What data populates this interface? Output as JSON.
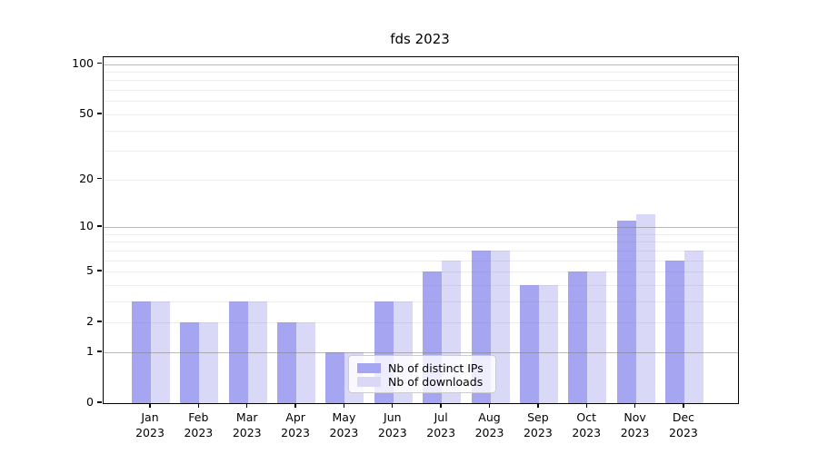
{
  "chart_data": {
    "type": "bar",
    "title": "fds 2023",
    "categories": [
      "Jan",
      "Feb",
      "Mar",
      "Apr",
      "May",
      "Jun",
      "Jul",
      "Aug",
      "Sep",
      "Oct",
      "Nov",
      "Dec"
    ],
    "year_label": "2023",
    "series": [
      {
        "name": "Nb of distinct IPs",
        "color": "#a5a5f2",
        "values": [
          3,
          2,
          3,
          2,
          1,
          3,
          5,
          7,
          4,
          5,
          11,
          6
        ]
      },
      {
        "name": "Nb of downloads",
        "color": "#d9d9f7",
        "values": [
          3,
          2,
          3,
          2,
          1,
          3,
          6,
          7,
          4,
          5,
          12,
          7
        ]
      }
    ],
    "xlabel": "",
    "ylabel": "",
    "yscale": "log10(value+1)",
    "ylim": [
      0,
      110
    ],
    "yticks": [
      0,
      1,
      2,
      5,
      10,
      20,
      50,
      100
    ],
    "grid": {
      "orientation": "horizontal",
      "major_values": [
        1,
        10,
        100
      ],
      "minor_values": [
        2,
        3,
        4,
        5,
        6,
        7,
        8,
        9,
        20,
        30,
        40,
        50,
        60,
        70,
        80,
        90
      ]
    },
    "legend": {
      "position": "lower center"
    }
  },
  "colors": {
    "background": "#ffffff",
    "frame": "#000000",
    "grid_major": "#9e9e9e",
    "grid_minor": "#e9e9e9",
    "bar_distinct_ips": "#a5a5f2",
    "bar_downloads": "#d9d9f7",
    "legend_border": "#cccccc",
    "text": "#000000"
  }
}
